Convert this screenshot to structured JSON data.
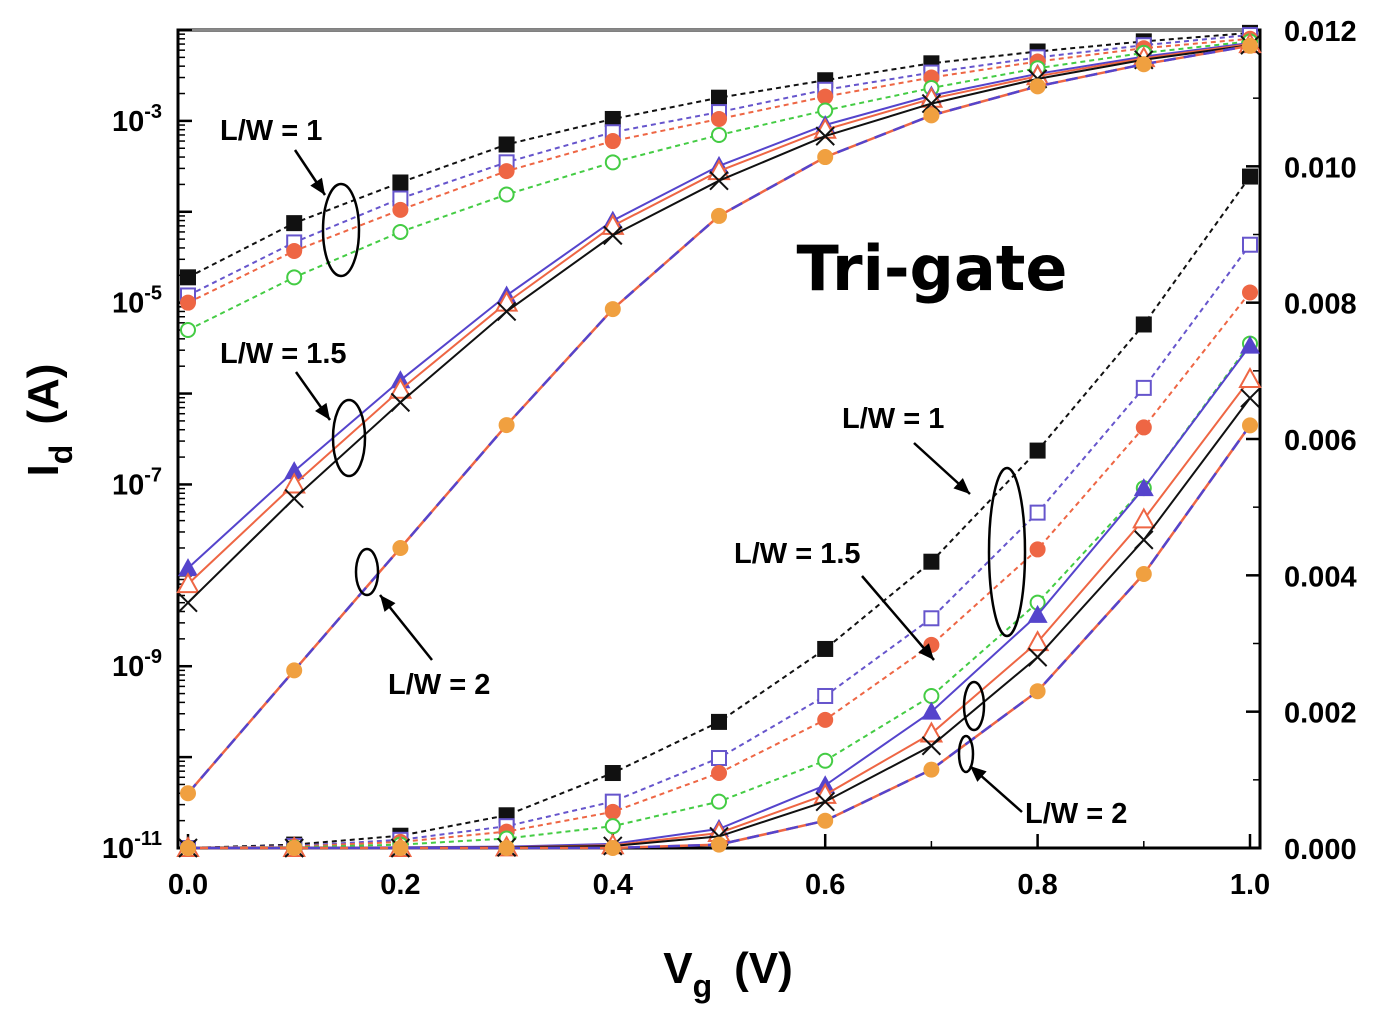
{
  "chart_data": {
    "type": "line",
    "title": "Tri-gate",
    "xlabel": {
      "main": "V",
      "sub": "g",
      "unit": "(V)"
    },
    "ylabel_left": {
      "main": "I",
      "sub": "d",
      "unit": "(A)"
    },
    "xlim": [
      0,
      1
    ],
    "x_ticks": [
      "0.0",
      "0.2",
      "0.4",
      "0.6",
      "0.8",
      "1.0"
    ],
    "y_left": {
      "scale": "log",
      "ylim": [
        1e-11,
        0.01
      ],
      "ticks": [
        {
          "base": "10",
          "exp": "-11",
          "value": 1e-11
        },
        {
          "base": "10",
          "exp": "-9",
          "value": 1e-09
        },
        {
          "base": "10",
          "exp": "-7",
          "value": 1e-07
        },
        {
          "base": "10",
          "exp": "-5",
          "value": 1e-05
        },
        {
          "base": "10",
          "exp": "-3",
          "value": 0.001
        }
      ]
    },
    "y_right": {
      "scale": "linear",
      "ylim": [
        0,
        0.012
      ],
      "ticks": [
        "0.000",
        "0.002",
        "0.004",
        "0.006",
        "0.008",
        "0.010",
        "0.012"
      ]
    },
    "x": [
      0.0,
      0.1,
      0.2,
      0.3,
      0.4,
      0.5,
      0.6,
      0.7,
      0.8,
      0.9,
      1.0
    ],
    "series": [
      {
        "axis": "log",
        "marker": "square-filled",
        "color": "#111111",
        "line": "dotted",
        "values": [
          1.9e-05,
          7.5e-05,
          0.00021,
          0.00055,
          0.00105,
          0.0018,
          0.0028,
          0.0043,
          0.0058,
          0.0075,
          0.0093
        ]
      },
      {
        "axis": "log",
        "marker": "square-open",
        "color": "#6655cc",
        "line": "dotted",
        "values": [
          1.2e-05,
          4.6e-05,
          0.00014,
          0.00035,
          0.00075,
          0.00125,
          0.0022,
          0.0034,
          0.005,
          0.0068,
          0.0088
        ]
      },
      {
        "axis": "log",
        "marker": "circle-filled",
        "color": "#ee6644",
        "line": "dotted",
        "values": [
          1e-05,
          3.7e-05,
          0.000105,
          0.00028,
          0.0006,
          0.00105,
          0.00185,
          0.003,
          0.0045,
          0.0063,
          0.008
        ]
      },
      {
        "axis": "log",
        "marker": "circle-open",
        "color": "#44cc44",
        "line": "dotted",
        "values": [
          5e-06,
          1.9e-05,
          6e-05,
          0.000155,
          0.00035,
          0.0007,
          0.0013,
          0.0023,
          0.0038,
          0.0056,
          0.0075
        ]
      },
      {
        "axis": "log",
        "marker": "triangle-filled",
        "color": "#5544cc",
        "line": "solid",
        "values": [
          1.2e-08,
          1.4e-07,
          1.4e-06,
          1.2e-05,
          8e-05,
          0.00032,
          0.0009,
          0.0019,
          0.0033,
          0.0051,
          0.0072
        ]
      },
      {
        "axis": "log",
        "marker": "triangle-open",
        "color": "#ee6644",
        "line": "solid",
        "values": [
          8e-09,
          1e-07,
          1.1e-06,
          1e-05,
          7e-05,
          0.00028,
          0.0008,
          0.00175,
          0.0031,
          0.0049,
          0.007
        ]
      },
      {
        "axis": "log",
        "marker": "x",
        "color": "#111111",
        "line": "solid",
        "values": [
          5e-09,
          7e-08,
          8e-07,
          8e-06,
          5.5e-05,
          0.00022,
          0.00068,
          0.00155,
          0.0029,
          0.0047,
          0.0068
        ]
      },
      {
        "axis": "log",
        "marker": "circle-filled",
        "color": "#f0a040",
        "line": "solid+dashed",
        "values": [
          4e-11,
          9e-10,
          2e-08,
          4.5e-07,
          8.5e-06,
          9e-05,
          0.0004,
          0.00115,
          0.0024,
          0.0042,
          0.0067
        ]
      },
      {
        "axis": "linear",
        "marker": "square-filled",
        "color": "#111111",
        "line": "dotted",
        "values": [
          0.0,
          5e-05,
          0.00018,
          0.00048,
          0.0011,
          0.00185,
          0.00292,
          0.0042,
          0.00583,
          0.00768,
          0.00985
        ]
      },
      {
        "axis": "linear",
        "marker": "square-open",
        "color": "#6655cc",
        "line": "dotted",
        "values": [
          0.0,
          3e-05,
          0.00012,
          0.00032,
          0.00068,
          0.00132,
          0.00223,
          0.00337,
          0.00492,
          0.00675,
          0.00885
        ]
      },
      {
        "axis": "linear",
        "marker": "circle-filled",
        "color": "#ee6644",
        "line": "dotted",
        "values": [
          0.0,
          2e-05,
          9e-05,
          0.00024,
          0.00053,
          0.0011,
          0.00188,
          0.00298,
          0.00438,
          0.00617,
          0.00815
        ]
      },
      {
        "axis": "linear",
        "marker": "circle-open",
        "color": "#44cc44",
        "line": "dotted",
        "values": [
          0.0,
          1e-05,
          5e-05,
          0.00014,
          0.00032,
          0.00068,
          0.00128,
          0.00223,
          0.0036,
          0.00528,
          0.0074
        ]
      },
      {
        "axis": "linear",
        "marker": "triangle-filled",
        "color": "#5544cc",
        "line": "solid",
        "values": [
          0.0,
          0.0,
          1e-05,
          2e-05,
          6e-05,
          0.00028,
          0.00092,
          0.002,
          0.00342,
          0.00528,
          0.00737
        ]
      },
      {
        "axis": "linear",
        "marker": "triangle-open",
        "color": "#ee6644",
        "line": "solid",
        "values": [
          0.0,
          0.0,
          0.0,
          1e-05,
          4e-05,
          0.00022,
          0.00078,
          0.00168,
          0.00302,
          0.00482,
          0.00688
        ]
      },
      {
        "axis": "linear",
        "marker": "x",
        "color": "#111111",
        "line": "solid",
        "values": [
          0.0,
          0.0,
          0.0,
          1e-05,
          3e-05,
          0.00017,
          0.00068,
          0.0015,
          0.0028,
          0.00452,
          0.0066
        ]
      },
      {
        "axis": "linear",
        "marker": "circle-filled",
        "color": "#f0a040",
        "line": "solid+dashed",
        "values": [
          0.0,
          0.0,
          0.0,
          0.0,
          0.0,
          5e-05,
          0.0004,
          0.00115,
          0.0023,
          0.00402,
          0.0062
        ]
      }
    ],
    "annotations": [
      "L/W = 1",
      "L/W = 1.5",
      "L/W = 2",
      "L/W = 1",
      "L/W = 1.5",
      "L/W = 2"
    ]
  }
}
